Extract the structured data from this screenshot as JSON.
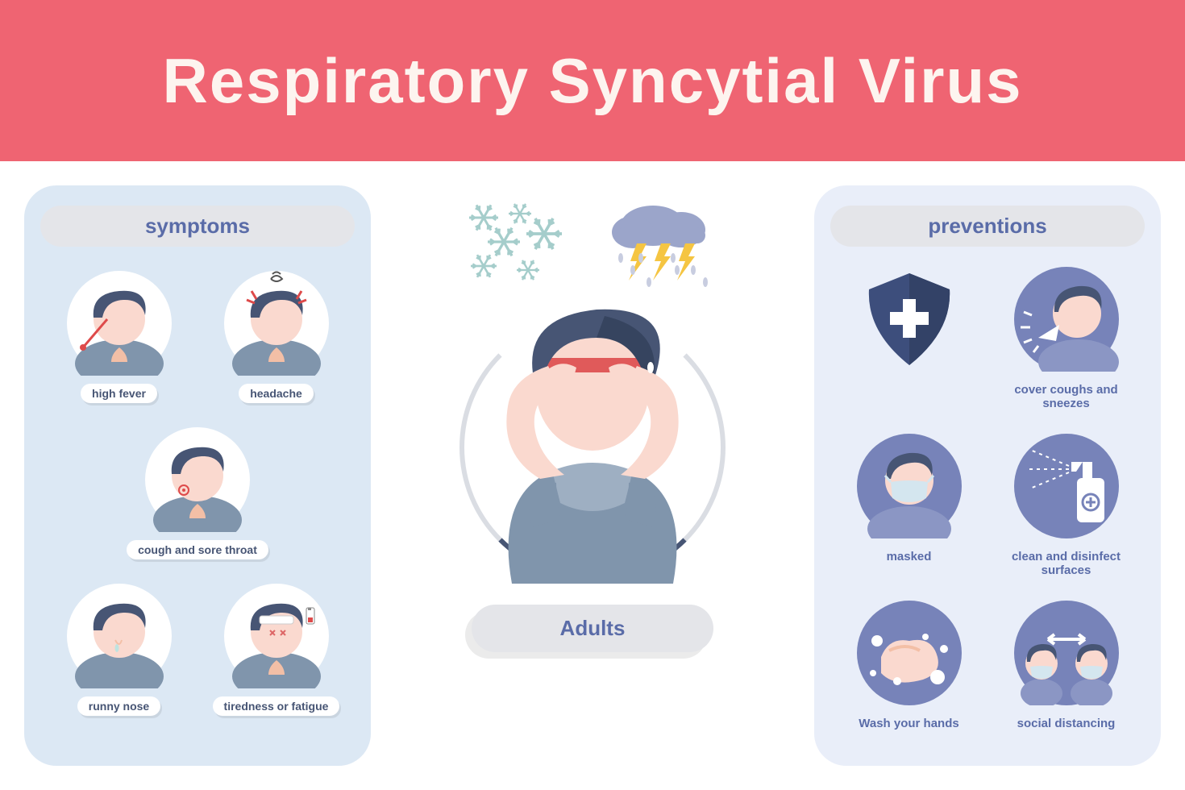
{
  "colors": {
    "header_bg": "#ef6472",
    "header_text": "#fdf4ef",
    "panel_light": "#dce8f4",
    "panel_lighter": "#e9eef9",
    "pill_bg": "#e4e5e9",
    "pill_text": "#5a6ca8",
    "circle_blue": "#7783b9",
    "circle_white": "#ffffff",
    "text_blue": "#5a6ca8",
    "skin": "#fad9cf",
    "skin_shadow": "#f3bfa6",
    "hair": "#475574",
    "shirt": "#8095ac",
    "shirt_light": "#9eafc2",
    "redband": "#e05a5a",
    "shield": "#3d4e7c",
    "snow": "#a5cdcb",
    "cloud": "#9ba5ca",
    "bolt": "#f5c542",
    "drop": "#c8cde0"
  },
  "header": {
    "title": "Respiratory Syncytial Virus"
  },
  "symptoms": {
    "title": "symptoms",
    "items": [
      {
        "label": "high fever",
        "icon": "fever"
      },
      {
        "label": "headache",
        "icon": "headache"
      },
      {
        "label": "cough and sore throat",
        "icon": "cough",
        "full": true
      },
      {
        "label": "runny nose",
        "icon": "runnynose"
      },
      {
        "label": "tiredness or fatigue",
        "icon": "fatigue"
      }
    ]
  },
  "center": {
    "label": "Adults"
  },
  "preventions": {
    "title": "preventions",
    "items": [
      {
        "label": "",
        "icon": "shield",
        "bare": true
      },
      {
        "label": "cover coughs and sneezes",
        "icon": "sneeze"
      },
      {
        "label": "masked",
        "icon": "masked"
      },
      {
        "label": "clean and disinfect surfaces",
        "icon": "spray"
      },
      {
        "label": "Wash your hands",
        "icon": "wash"
      },
      {
        "label": "social distancing",
        "icon": "distance"
      }
    ]
  }
}
